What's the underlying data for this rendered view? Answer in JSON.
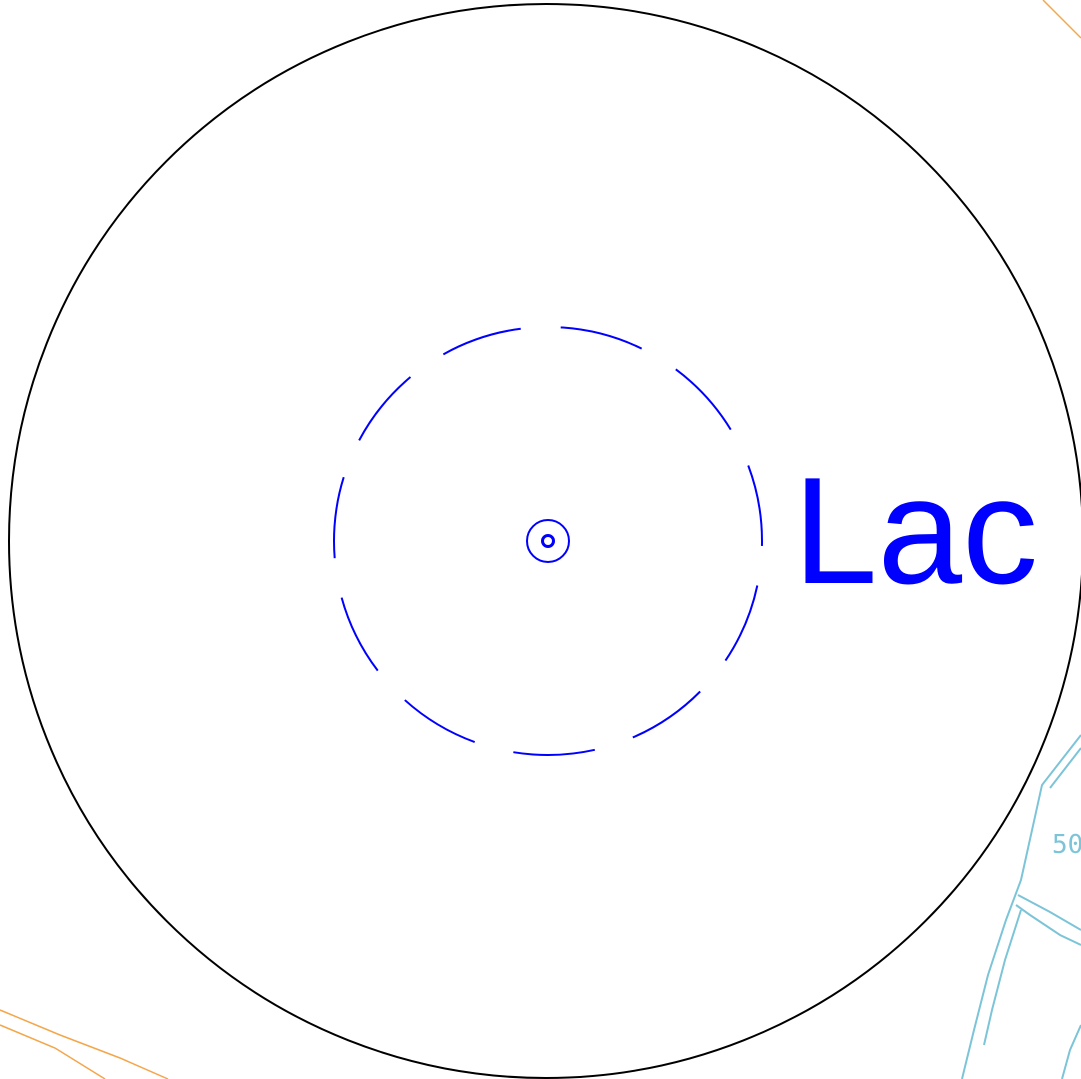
{
  "map": {
    "place_label": "Lac",
    "contour_label": "50",
    "colors": {
      "background": "#ffffff",
      "range_circle": "#000000",
      "marker": "#0000ff",
      "place_label": "#0000ff",
      "contour": "#7cc4d8",
      "road": "#f4a64a"
    }
  }
}
